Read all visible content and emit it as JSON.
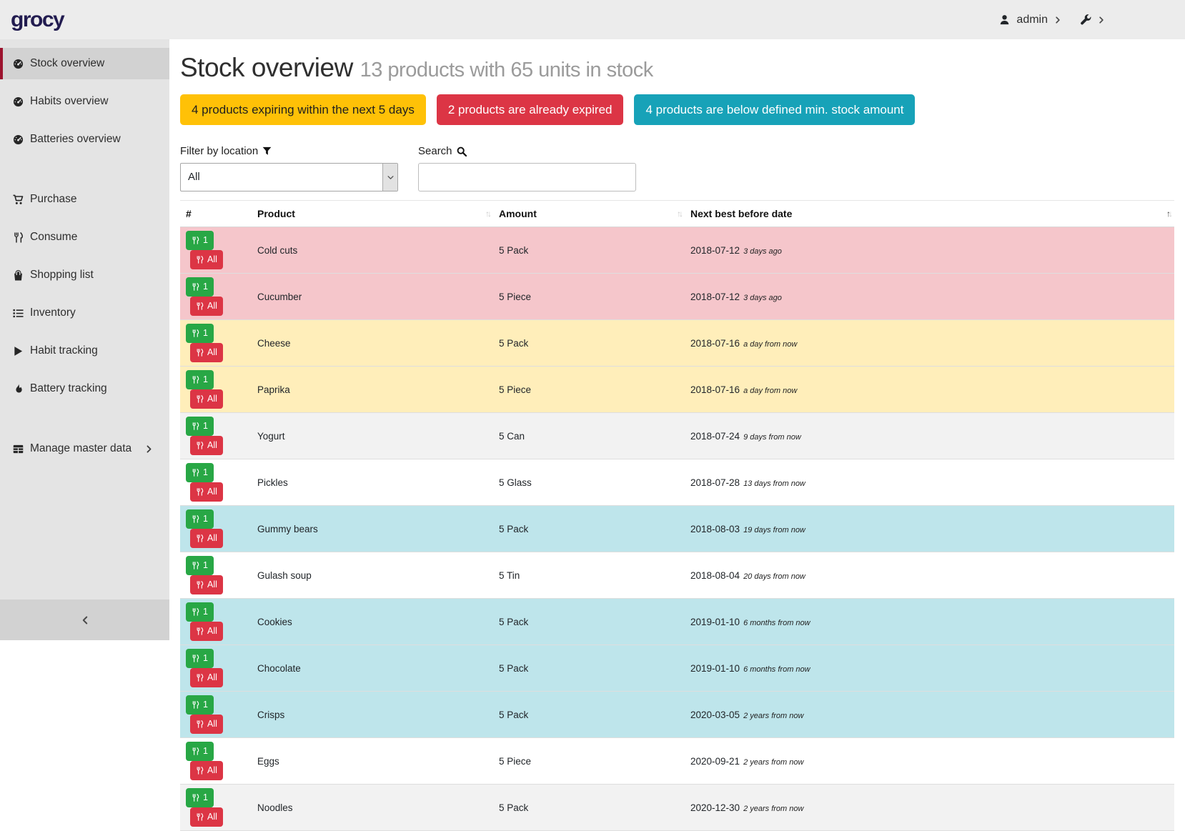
{
  "topbar": {
    "logo": "grocy",
    "user_label": "admin",
    "user_icon": "user-icon",
    "settings_icon": "wrench-icon"
  },
  "sidebar": {
    "items": [
      {
        "label": "Stock overview",
        "icon": "gauge-icon",
        "active": true,
        "gap_before": false,
        "has_submenu": false
      },
      {
        "label": "Habits overview",
        "icon": "gauge-icon",
        "active": false,
        "gap_before": false,
        "has_submenu": false
      },
      {
        "label": "Batteries overview",
        "icon": "gauge-icon",
        "active": false,
        "gap_before": false,
        "has_submenu": false
      },
      {
        "label": "Purchase",
        "icon": "cart-icon",
        "active": false,
        "gap_before": true,
        "has_submenu": false
      },
      {
        "label": "Consume",
        "icon": "utensils-icon",
        "active": false,
        "gap_before": false,
        "has_submenu": false
      },
      {
        "label": "Shopping list",
        "icon": "bag-icon",
        "active": false,
        "gap_before": false,
        "has_submenu": false
      },
      {
        "label": "Inventory",
        "icon": "list-icon",
        "active": false,
        "gap_before": false,
        "has_submenu": false
      },
      {
        "label": "Habit tracking",
        "icon": "play-icon",
        "active": false,
        "gap_before": false,
        "has_submenu": false
      },
      {
        "label": "Battery tracking",
        "icon": "flame-icon",
        "active": false,
        "gap_before": false,
        "has_submenu": false
      },
      {
        "label": "Manage master data",
        "icon": "table-icon",
        "active": false,
        "gap_before": true,
        "has_submenu": true
      }
    ],
    "collapse_icon": "chevron-left-icon"
  },
  "header": {
    "title": "Stock overview",
    "subtitle": "13 products with 65 units in stock"
  },
  "badges": [
    {
      "name": "expiring-badge",
      "label": "4 products expiring within the next 5 days",
      "bg": "#ffc107",
      "fg": "#1f1f1f"
    },
    {
      "name": "expired-badge",
      "label": "2 products are already expired",
      "bg": "#dc3545",
      "fg": "#ffffff"
    },
    {
      "name": "below-min-badge",
      "label": "4 products are below defined min. stock amount",
      "bg": "#17a2b8",
      "fg": "#ffffff"
    }
  ],
  "filter": {
    "label": "Filter by location",
    "icon": "filter-icon",
    "value": "All"
  },
  "search": {
    "label": "Search",
    "icon": "search-icon",
    "value": "",
    "placeholder": ""
  },
  "table": {
    "columns": [
      {
        "label": "#",
        "sortable": false,
        "sort": "none"
      },
      {
        "label": "Product",
        "sortable": true,
        "sort": "none"
      },
      {
        "label": "Amount",
        "sortable": true,
        "sort": "none"
      },
      {
        "label": "Next best before date",
        "sortable": true,
        "sort": "asc"
      }
    ],
    "row_buttons": [
      {
        "name": "consume-one-button",
        "label": "1",
        "bg": "#28a745",
        "icon": "utensils-icon"
      },
      {
        "name": "consume-all-button",
        "label": "All",
        "bg": "#dc3545",
        "icon": "utensils-icon"
      }
    ],
    "status_colors": {
      "expired": "#f5c6cb",
      "expiring": "#ffeeba",
      "below_min": "#bee5eb",
      "stripe": "#f2f2f2",
      "none": "#ffffff"
    },
    "rows": [
      {
        "product": "Cold cuts",
        "amount": "5 Pack",
        "date": "2018-07-12",
        "timeago": "3 days ago",
        "status": "expired"
      },
      {
        "product": "Cucumber",
        "amount": "5 Piece",
        "date": "2018-07-12",
        "timeago": "3 days ago",
        "status": "expired"
      },
      {
        "product": "Cheese",
        "amount": "5 Pack",
        "date": "2018-07-16",
        "timeago": "a day from now",
        "status": "expiring"
      },
      {
        "product": "Paprika",
        "amount": "5 Piece",
        "date": "2018-07-16",
        "timeago": "a day from now",
        "status": "expiring"
      },
      {
        "product": "Yogurt",
        "amount": "5 Can",
        "date": "2018-07-24",
        "timeago": "9 days from now",
        "status": "none"
      },
      {
        "product": "Pickles",
        "amount": "5 Glass",
        "date": "2018-07-28",
        "timeago": "13 days from now",
        "status": "none"
      },
      {
        "product": "Gummy bears",
        "amount": "5 Pack",
        "date": "2018-08-03",
        "timeago": "19 days from now",
        "status": "below_min"
      },
      {
        "product": "Gulash soup",
        "amount": "5 Tin",
        "date": "2018-08-04",
        "timeago": "20 days from now",
        "status": "none"
      },
      {
        "product": "Cookies",
        "amount": "5 Pack",
        "date": "2019-01-10",
        "timeago": "6 months from now",
        "status": "below_min"
      },
      {
        "product": "Chocolate",
        "amount": "5 Pack",
        "date": "2019-01-10",
        "timeago": "6 months from now",
        "status": "below_min"
      },
      {
        "product": "Crisps",
        "amount": "5 Pack",
        "date": "2020-03-05",
        "timeago": "2 years from now",
        "status": "below_min"
      },
      {
        "product": "Eggs",
        "amount": "5 Piece",
        "date": "2020-09-21",
        "timeago": "2 years from now",
        "status": "none"
      },
      {
        "product": "Noodles",
        "amount": "5 Pack",
        "date": "2020-12-30",
        "timeago": "2 years from now",
        "status": "none"
      }
    ]
  }
}
